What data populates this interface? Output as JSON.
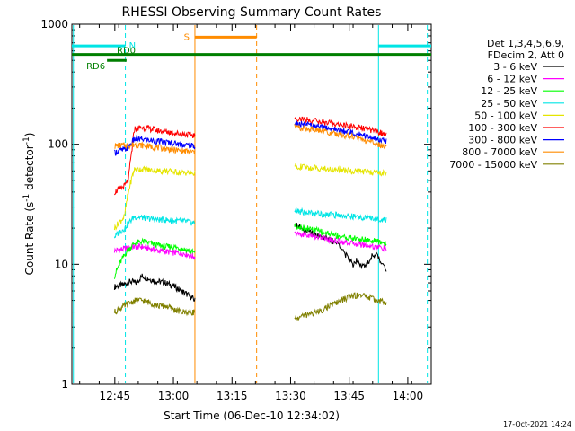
{
  "chart_data": {
    "type": "line",
    "title": "RHESSI Observing Summary Count Rates",
    "xlabel": "Start Time (06-Dec-10 12:34:02)",
    "ylabel_main": "Count Rate (s",
    "ylabel_sup1": "-1",
    "ylabel_mid": " detector",
    "ylabel_sup2": "-1",
    "ylabel_end": ")",
    "xlim_min": [
      0,
      92
    ],
    "y_scale": "log",
    "ylim": [
      1,
      1000
    ],
    "x_ticks": [
      {
        "min": 11,
        "label": "12:45"
      },
      {
        "min": 26,
        "label": "13:00"
      },
      {
        "min": 41,
        "label": "13:15"
      },
      {
        "min": 56,
        "label": "13:30"
      },
      {
        "min": 71,
        "label": "13:45"
      },
      {
        "min": 86,
        "label": "14:00"
      }
    ],
    "y_ticks": [
      {
        "value": 1,
        "label": "1"
      },
      {
        "value": 10,
        "label": "10"
      },
      {
        "value": 100,
        "label": "100"
      },
      {
        "value": 1000,
        "label": "1000"
      }
    ],
    "legend": {
      "placement": "right",
      "header": [
        "Det 1,3,4,5,6,9,",
        "FDecim 2, Att 0"
      ]
    },
    "series": [
      {
        "name": "3 - 6 keV",
        "color": "#000000",
        "seg1": {
          "x": [
            10.9,
            13.5,
            15.0,
            16.5,
            18.0,
            20.0,
            22.0,
            24.0,
            26.0,
            28.0,
            30.0,
            31.5
          ],
          "y": [
            6.5,
            6.8,
            7.2,
            7.0,
            8.0,
            7.5,
            7.2,
            7.0,
            6.6,
            6.0,
            5.5,
            5.0
          ]
        },
        "seg2": {
          "x": [
            57.0,
            58.0,
            60.0,
            62.0,
            64.0,
            66.0,
            68.0,
            69.0,
            70.0,
            71.0,
            72.0,
            73.0,
            74.0,
            75.0,
            76.0,
            77.0,
            78.0,
            79.0,
            80.0,
            80.5
          ],
          "y": [
            22.0,
            21.0,
            19.0,
            18.0,
            17.0,
            16.0,
            15.0,
            14.0,
            12.0,
            11.0,
            10.0,
            11.0,
            10.0,
            9.5,
            10.5,
            12.0,
            12.0,
            10.5,
            10.0,
            9.0
          ]
        }
      },
      {
        "name": "6 - 12 keV",
        "color": "#ff00ff",
        "seg1": {
          "x": [
            10.9,
            13.5,
            16.0,
            18.0,
            20.0,
            22.0,
            24.0,
            26.0,
            28.0,
            30.0,
            31.5
          ],
          "y": [
            13.0,
            13.5,
            14.0,
            14.0,
            13.5,
            13.0,
            12.8,
            12.5,
            12.5,
            12.0,
            11.5
          ]
        },
        "seg2": {
          "x": [
            57.0,
            60.0,
            63.0,
            66.0,
            69.0,
            72.0,
            75.0,
            78.0,
            80.5
          ],
          "y": [
            18.0,
            17.5,
            17.0,
            16.0,
            15.5,
            15.0,
            14.5,
            14.0,
            13.5
          ]
        }
      },
      {
        "name": "12 - 25 keV",
        "color": "#00ff00",
        "seg1": {
          "x": [
            10.9,
            13.5,
            16.0,
            18.0,
            20.0,
            22.0,
            24.0,
            26.0,
            28.0,
            30.0,
            31.5
          ],
          "y": [
            8.0,
            12.0,
            15.0,
            15.5,
            15.0,
            14.5,
            14.0,
            14.0,
            13.5,
            13.0,
            12.5
          ]
        },
        "seg2": {
          "x": [
            57.0,
            60.0,
            63.0,
            66.0,
            69.0,
            72.0,
            75.0,
            78.0,
            80.5
          ],
          "y": [
            21.0,
            20.0,
            19.0,
            18.0,
            17.0,
            16.5,
            16.0,
            15.5,
            15.0
          ]
        }
      },
      {
        "name": "25 - 50 keV",
        "color": "#00e5e5",
        "seg1": {
          "x": [
            10.9,
            13.5,
            16.0,
            18.0,
            20.0,
            22.0,
            24.0,
            26.0,
            28.0,
            30.0,
            31.5
          ],
          "y": [
            17.0,
            20.0,
            25.0,
            24.5,
            24.0,
            23.5,
            23.5,
            23.0,
            23.0,
            22.5,
            22.0
          ]
        },
        "seg2": {
          "x": [
            57.0,
            60.0,
            63.0,
            66.0,
            69.0,
            72.0,
            75.0,
            78.0,
            80.5
          ],
          "y": [
            28.0,
            27.0,
            26.5,
            26.0,
            25.5,
            25.0,
            24.5,
            24.0,
            23.5
          ]
        }
      },
      {
        "name": "50 - 100 keV",
        "color": "#e5e500",
        "seg1": {
          "x": [
            10.9,
            13.5,
            16.0,
            18.0,
            20.0,
            22.0,
            24.0,
            26.0,
            28.0,
            30.0,
            31.5
          ],
          "y": [
            20.0,
            25.0,
            62.0,
            62.0,
            61.0,
            60.0,
            60.0,
            59.0,
            58.0,
            58.0,
            57.0
          ]
        },
        "seg2": {
          "x": [
            57.0,
            60.0,
            63.0,
            66.0,
            69.0,
            72.0,
            75.0,
            78.0,
            80.5
          ],
          "y": [
            66.0,
            64.0,
            63.0,
            62.0,
            61.0,
            60.0,
            59.0,
            58.0,
            57.0
          ]
        }
      },
      {
        "name": "100 - 300 keV",
        "color": "#ff0000",
        "seg1": {
          "x": [
            10.9,
            12.0,
            13.5,
            14.5,
            15.5,
            16.0,
            18.0,
            20.0,
            22.0,
            24.0,
            26.0,
            28.0,
            30.0,
            31.5
          ],
          "y": [
            40.0,
            42.0,
            45.0,
            50.0,
            95.0,
            135.0,
            138.0,
            135.0,
            130.0,
            128.0,
            125.0,
            122.0,
            120.0,
            118.0
          ]
        },
        "seg2": {
          "x": [
            57.0,
            60.0,
            63.0,
            66.0,
            69.0,
            72.0,
            75.0,
            78.0,
            80.5
          ],
          "y": [
            165.0,
            160.0,
            155.0,
            150.0,
            145.0,
            140.0,
            135.0,
            128.0,
            120.0
          ]
        }
      },
      {
        "name": "300 - 800 keV",
        "color": "#0000ff",
        "seg1": {
          "x": [
            10.9,
            12.0,
            13.5,
            14.5,
            15.5,
            16.0,
            18.0,
            20.0,
            22.0,
            24.0,
            26.0,
            28.0,
            30.0,
            31.5
          ],
          "y": [
            85.0,
            88.0,
            90.0,
            95.0,
            105.0,
            110.0,
            110.0,
            108.0,
            106.0,
            104.0,
            102.0,
            100.0,
            98.0,
            96.0
          ]
        },
        "seg2": {
          "x": [
            57.0,
            60.0,
            63.0,
            66.0,
            69.0,
            72.0,
            75.0,
            78.0,
            80.5
          ],
          "y": [
            150.0,
            145.0,
            140.0,
            135.0,
            130.0,
            125.0,
            118.0,
            110.0,
            105.0
          ]
        }
      },
      {
        "name": "800 - 7000 keV",
        "color": "#ff8c00",
        "seg1": {
          "x": [
            10.9,
            12.0,
            13.5,
            14.5,
            15.5,
            16.0,
            18.0,
            20.0,
            22.0,
            24.0,
            26.0,
            28.0,
            30.0,
            31.5
          ],
          "y": [
            97.0,
            98.0,
            98.0,
            98.0,
            98.0,
            100.0,
            98.0,
            96.0,
            94.0,
            92.0,
            90.0,
            88.0,
            87.0,
            86.0
          ]
        },
        "seg2": {
          "x": [
            57.0,
            60.0,
            63.0,
            66.0,
            69.0,
            72.0,
            75.0,
            78.0,
            80.5
          ],
          "y": [
            140.0,
            135.0,
            130.0,
            125.0,
            120.0,
            115.0,
            108.0,
            100.0,
            95.0
          ]
        }
      },
      {
        "name": "7000 - 15000 keV",
        "color": "#808000",
        "seg1": {
          "x": [
            10.9,
            13.5,
            15.0,
            16.5,
            18.0,
            20.0,
            22.0,
            24.0,
            26.0,
            28.0,
            30.0,
            31.5
          ],
          "y": [
            4.0,
            4.5,
            4.8,
            5.0,
            5.0,
            4.8,
            4.5,
            4.5,
            4.2,
            4.0,
            4.0,
            4.0
          ]
        },
        "seg2": {
          "x": [
            57.0,
            60.0,
            63.0,
            66.0,
            69.0,
            72.0,
            75.0,
            78.0,
            80.5
          ],
          "y": [
            3.5,
            3.8,
            4.0,
            4.5,
            5.0,
            5.5,
            5.5,
            5.0,
            4.8
          ]
        }
      }
    ],
    "state_bars": [
      {
        "label": "N",
        "color": "#00e5e5",
        "segments": [
          [
            0,
            13.7
          ],
          [
            78.5,
            92
          ]
        ],
        "value": 660
      },
      {
        "label": "RD0",
        "color": "#007f00",
        "segments": [
          [
            0,
            92
          ]
        ],
        "value": 560
      },
      {
        "label": "RD6",
        "color": "#007f00",
        "segments": [
          [
            9,
            14
          ]
        ],
        "value": 500
      },
      {
        "label": "S",
        "color": "#ff8c00",
        "segments": [
          [
            31.5,
            47.3
          ]
        ],
        "value": 780
      }
    ],
    "vlines": [
      {
        "min": 0.4,
        "color": "#00e5e5",
        "style": "solid"
      },
      {
        "min": 13.7,
        "color": "#00e5e5",
        "style": "dashed"
      },
      {
        "min": 31.5,
        "color": "#ff8c00",
        "style": "solid"
      },
      {
        "min": 47.3,
        "color": "#ff8c00",
        "style": "dashed"
      },
      {
        "min": 78.5,
        "color": "#00e5e5",
        "style": "solid"
      },
      {
        "min": 91.0,
        "color": "#00e5e5",
        "style": "dashed"
      }
    ],
    "footer_date": "17-Oct-2021 14:24"
  }
}
